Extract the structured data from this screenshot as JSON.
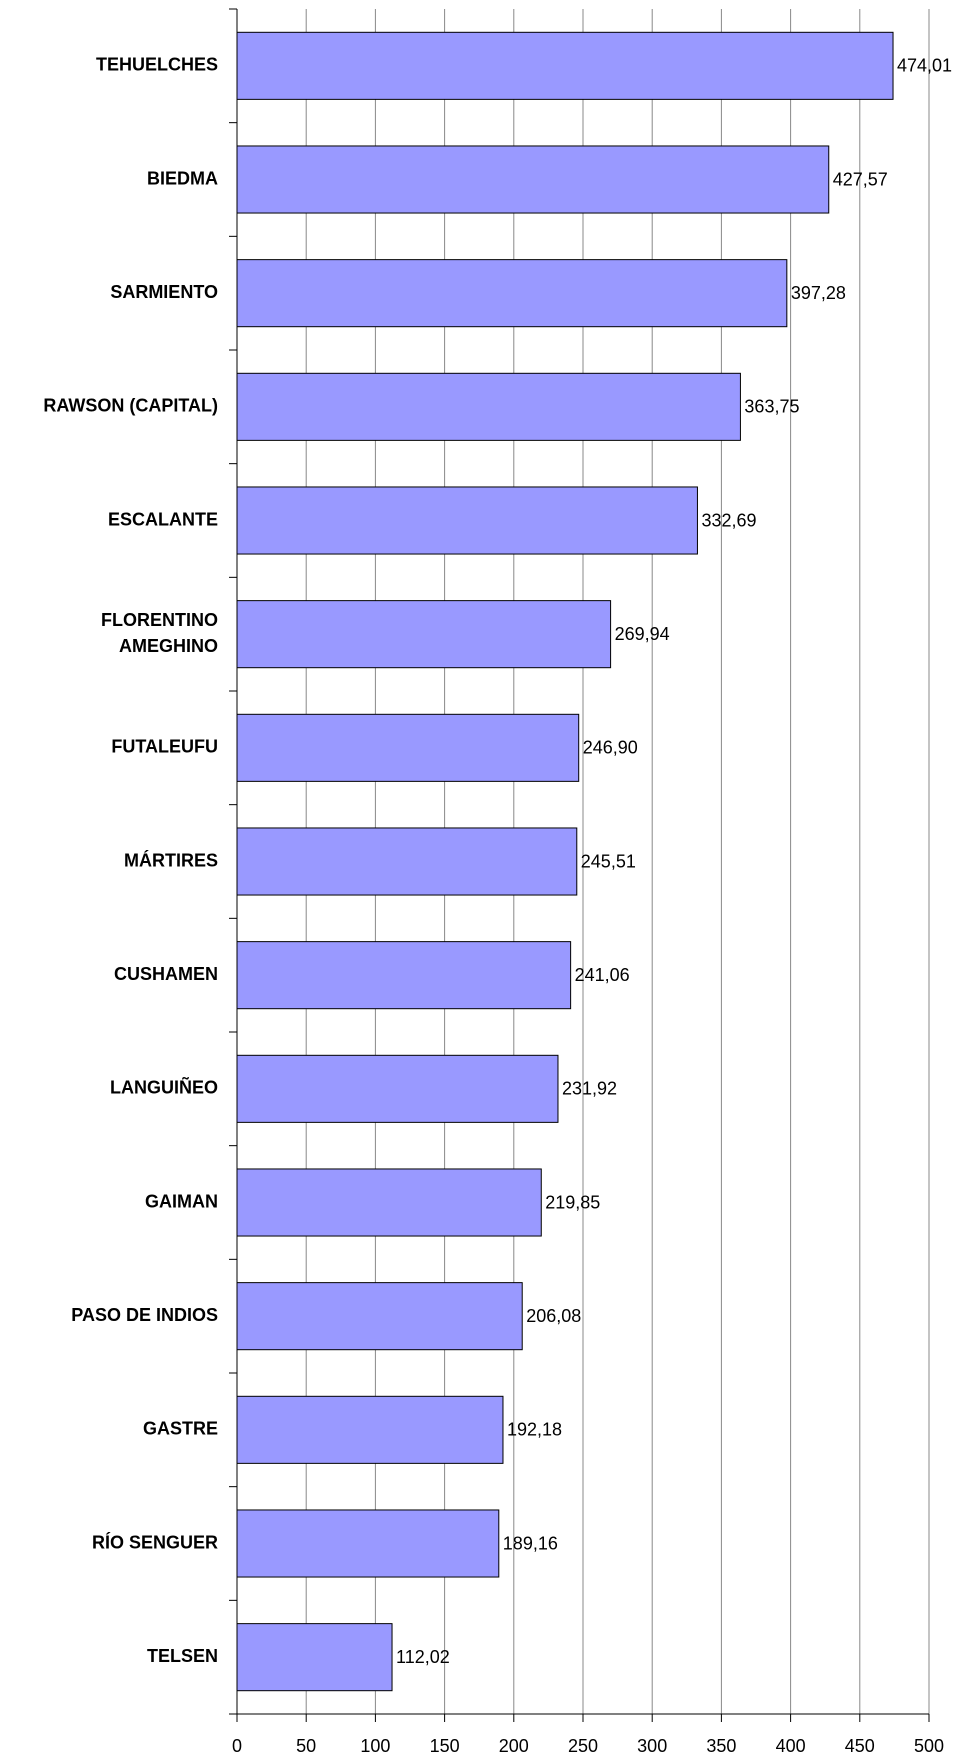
{
  "chart_data": {
    "type": "bar",
    "orientation": "horizontal",
    "categories": [
      "TEHUELCHES",
      "BIEDMA",
      "SARMIENTO",
      "RAWSON (CAPITAL)",
      "ESCALANTE",
      "FLORENTINO AMEGHINO",
      "FUTALEUFU",
      "MÁRTIRES",
      "CUSHAMEN",
      "LANGUIÑEO",
      "GAIMAN",
      "PASO DE INDIOS",
      "GASTRE",
      "RÍO SENGUER",
      "TELSEN"
    ],
    "values": [
      474.01,
      427.57,
      397.28,
      363.75,
      332.69,
      269.94,
      246.9,
      245.51,
      241.06,
      231.92,
      219.85,
      206.08,
      192.18,
      189.16,
      112.02
    ],
    "value_labels": [
      "474,01",
      "427,57",
      "397,28",
      "363,75",
      "332,69",
      "269,94",
      "246,90",
      "245,51",
      "241,06",
      "231,92",
      "219,85",
      "206,08",
      "192,18",
      "189,16",
      "112,02"
    ],
    "color": "#9999ff",
    "xlim": [
      0,
      500
    ],
    "xticks": [
      0,
      50,
      100,
      150,
      200,
      250,
      300,
      350,
      400,
      450,
      500
    ],
    "grid": true
  }
}
